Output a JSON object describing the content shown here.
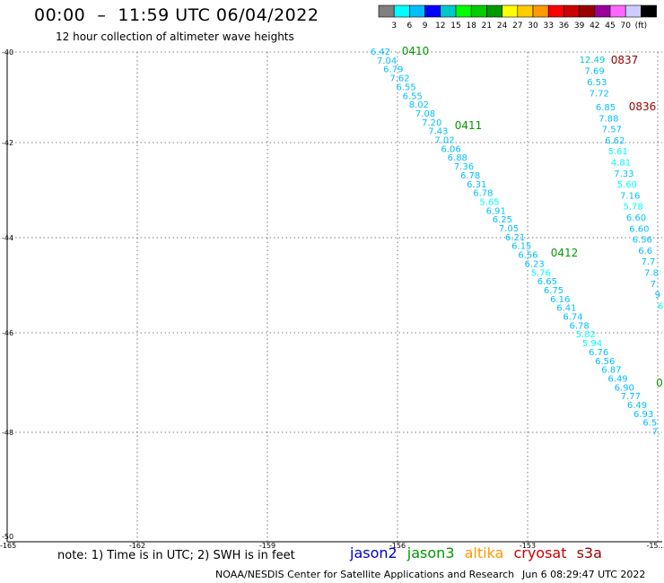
{
  "header": {
    "title": "00:00  –  11:59 UTC 06/04/2022",
    "subtitle": "12 hour collection of altimeter wave heights"
  },
  "color_scale": {
    "colors": [
      "#808080",
      "#00ffff",
      "#00bfff",
      "#0000ff",
      "#00c8c8",
      "#00ff00",
      "#00cc00",
      "#009900",
      "#ffff00",
      "#ffcc00",
      "#ff9900",
      "#ff0000",
      "#cc0000",
      "#990000",
      "#990099",
      "#ff66ff",
      "#ccccff",
      "#000000"
    ],
    "labels": [
      "3",
      "6",
      "9",
      "12",
      "15",
      "18",
      "21",
      "24",
      "27",
      "30",
      "33",
      "36",
      "39",
      "42",
      "45",
      "70",
      "(ft)"
    ]
  },
  "map": {
    "lat_labels": [
      "-40",
      "-42",
      "-44",
      "-46",
      "-48",
      "-50"
    ],
    "lon_labels": [
      "-165",
      "-162",
      "-159",
      "-156",
      "-153",
      "-15…"
    ],
    "passes": [
      {
        "id": "0410",
        "color": "#009900",
        "values": [
          "6.42",
          "7.04",
          "6.79",
          "7.62",
          "6.55",
          "6.55",
          "8.02",
          "7.08",
          "7.20",
          "7.43",
          "7.02",
          "6.06",
          "6.88",
          "7.36",
          "6.78",
          "6.31",
          "6.78",
          "5.65",
          "6.91",
          "6.25",
          "7.05",
          "6.21",
          "6.15",
          "6.56",
          "6.23",
          "5.76",
          "6.65",
          "6.75",
          "6.16",
          "6.41",
          "6.74",
          "6.78",
          "5.82",
          "5.94",
          "6.76",
          "6.56",
          "6.87",
          "6.49",
          "6.90",
          "7.77",
          "6.49",
          "6.93",
          "6.5",
          "7."
        ]
      },
      {
        "id": "0411",
        "color": "#009900",
        "values": []
      },
      {
        "id": "0412",
        "color": "#009900",
        "values": []
      },
      {
        "id": "0837",
        "color": "#990000",
        "values": [
          "12.49",
          "7.69",
          "6.53",
          "7.72"
        ]
      },
      {
        "id": "0836",
        "color": "#990000",
        "values": [
          "6.85",
          "7.88",
          "7.57",
          "6.62",
          "5.61",
          "4.81",
          "7.33",
          "5.60",
          "7.16",
          "5.78",
          "6.60",
          "6.60",
          "6.56",
          "6.6",
          "7.7",
          "7.8",
          "7.",
          "9",
          "6"
        ]
      },
      {
        "id": "0",
        "color": "#009900",
        "values": []
      }
    ]
  },
  "footer": {
    "note": "note:  1) Time is in UTC;  2) SWH is in feet",
    "missions": [
      {
        "name": "jason2",
        "color": "#0000cc"
      },
      {
        "name": "jason3",
        "color": "#009900"
      },
      {
        "name": "altika",
        "color": "#ff9900"
      },
      {
        "name": "cryosat",
        "color": "#cc0000"
      },
      {
        "name": "s3a",
        "color": "#990000"
      }
    ],
    "credit": "NOAA/NESDIS Center for Satellite Applications and Research",
    "timestamp": "Jun  6 08:29:47 UTC 2022"
  }
}
